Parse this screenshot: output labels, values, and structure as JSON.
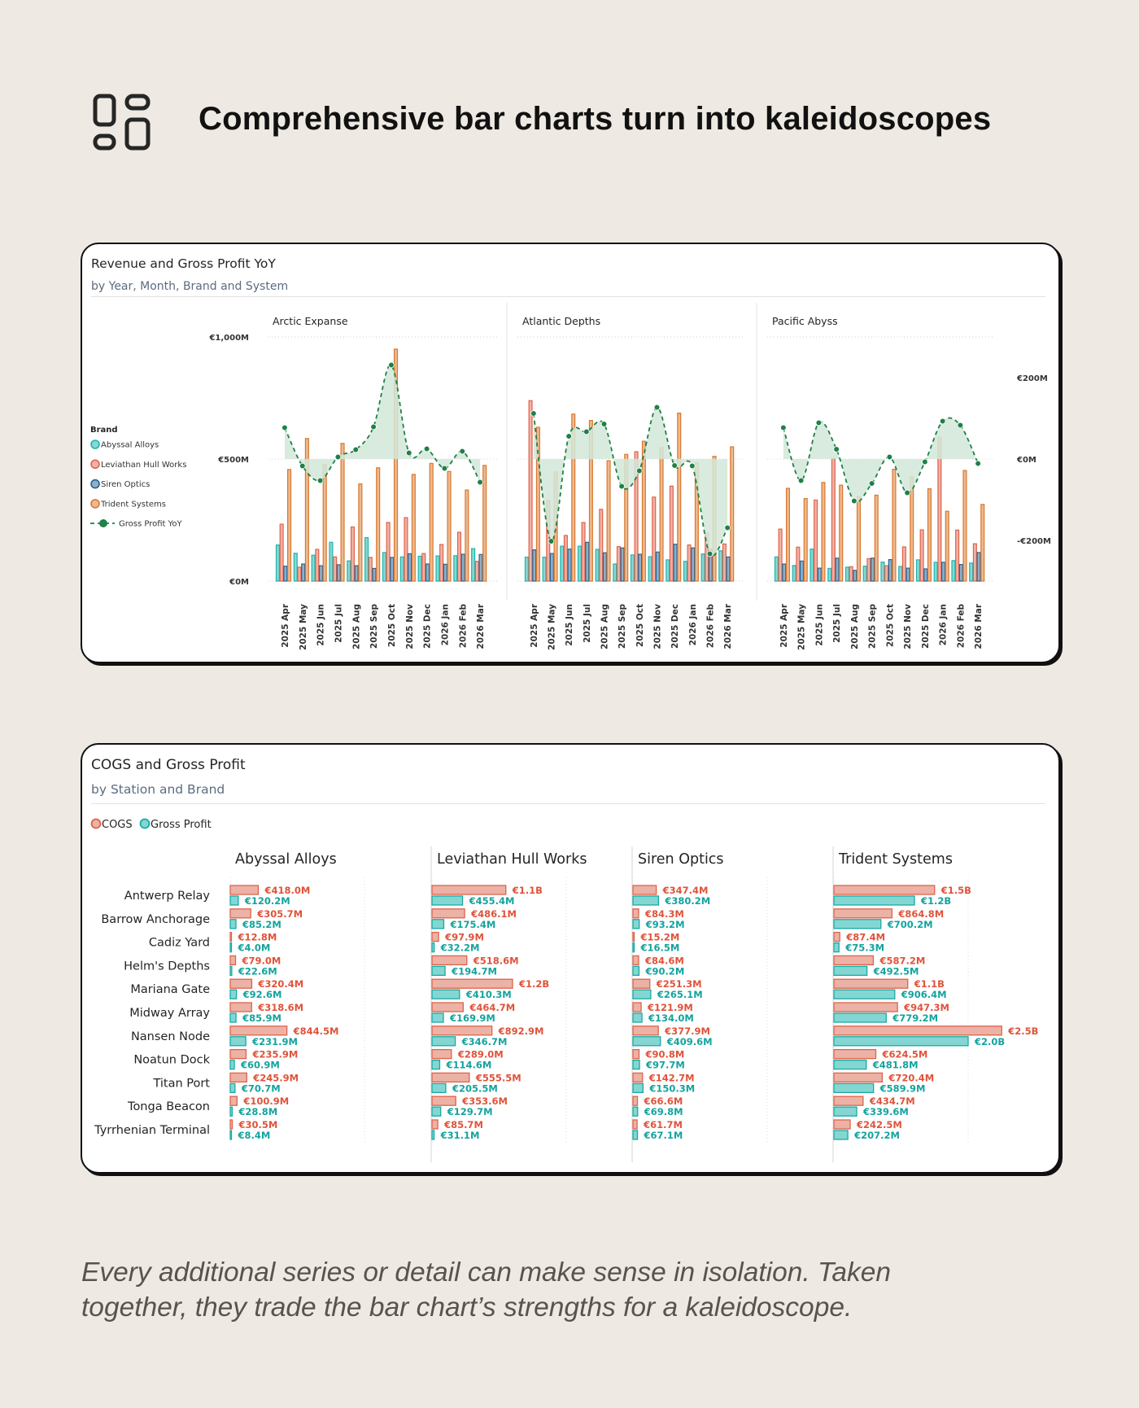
{
  "header": {
    "title": "Comprehensive bar charts turn into kaleidoscopes",
    "icon": "layout-grid-icon"
  },
  "card1": {
    "title": "Revenue and Gross Profit YoY",
    "subtitle": "by Year, Month, Brand and System"
  },
  "card2": {
    "title": "COGS and Gross Profit",
    "subtitle": "by Station and Brand"
  },
  "footer": {
    "line1": "Every additional series or detail can make sense in isolation. Taken",
    "line2": "together, they trade the bar chart’s strengths for a kaleidoscope."
  },
  "chart_data": [
    {
      "type": "bar",
      "secondary_type": "line",
      "title": "Revenue and Gross Profit YoY",
      "subtitle": "by Year, Month, Brand and System",
      "categories": [
        "2025 Apr",
        "2025 May",
        "2025 Jun",
        "2025 Jul",
        "2025 Aug",
        "2025 Sep",
        "2025 Oct",
        "2025 Nov",
        "2025 Dec",
        "2026 Jan",
        "2026 Feb",
        "2026 Mar"
      ],
      "ylim": [
        0,
        1000
      ],
      "yticks": [
        "€0M",
        "€500M",
        "€1,000M"
      ],
      "y2lim": [
        -300,
        300
      ],
      "y2ticks": [
        "-€200M",
        "€0M",
        "€200M"
      ],
      "legend": {
        "title": "Brand",
        "position": "left",
        "line_label": "Gross Profit YoY"
      },
      "series_names": [
        "Abyssal Alloys",
        "Leviathan Hull Works",
        "Siren Optics",
        "Trident Systems"
      ],
      "colors": {
        "Abyssal Alloys": {
          "fill": "#86d8d3",
          "stroke": "#22b3ab"
        },
        "Leviathan Hull Works": {
          "fill": "#efb3a6",
          "stroke": "#e0634b"
        },
        "Siren Optics": {
          "fill": "#8fb0c8",
          "stroke": "#2a6391"
        },
        "Trident Systems": {
          "fill": "#edba90",
          "stroke": "#d9782f"
        },
        "line": "#1f8048",
        "area": "#d2e7d9"
      },
      "grid": true,
      "panels": [
        {
          "name": "Arctic Expanse",
          "series": [
            [
              148,
              114,
              106,
              159,
              83,
              178,
              117,
              99,
              102,
              103,
              104,
              133
            ],
            [
              233,
              57,
              130,
              99,
              222,
              97,
              240,
              260,
              113,
              150,
              200,
              81
            ],
            [
              61,
              70,
              63,
              67,
              63,
              52,
              97,
              112,
              70,
              69,
              110,
              109
            ],
            [
              457,
              584,
              478,
              564,
              398,
              464,
              950,
              437,
              482,
              449,
              373,
              474
            ]
          ],
          "gross_profit_yoy": [
            77,
            -17,
            -53,
            5,
            23,
            79,
            231,
            15,
            25,
            -23,
            19,
            -57
          ]
        },
        {
          "name": "Atlantic Depths",
          "series": [
            [
              98,
              98,
              143,
              143,
              130,
              70,
              107,
              100,
              87,
              81,
              111,
              124
            ],
            [
              739,
              330,
              187,
              240,
              294,
              141,
              530,
              344,
              389,
              148,
              197,
              152
            ],
            [
              128,
              113,
              131,
              159,
              116,
              136,
              110,
              119,
              151,
              136,
              130,
              99
            ],
            [
              630,
              447,
              684,
              658,
              493,
              519,
              573,
              547,
              688,
              484,
              511,
              550
            ]
          ],
          "gross_profit_yoy": [
            112,
            -202,
            56,
            67,
            86,
            -67,
            -29,
            127,
            -16,
            -17,
            -233,
            -169
          ]
        },
        {
          "name": "Pacific Abyss",
          "series": [
            [
              99,
              64,
              131,
              52,
              57,
              61,
              78,
              60,
              87,
              77,
              84,
              74
            ],
            [
              213,
              139,
              332,
              503,
              59,
              92,
              63,
              140,
              210,
              589,
              209,
              153
            ],
            [
              70,
              82,
              53,
              94,
              44,
              94,
              88,
              53,
              50,
              77,
              68,
              117
            ],
            [
              380,
              338,
              404,
              393,
              346,
              352,
              458,
              427,
              378,
              286,
              453,
              314
            ]
          ],
          "gross_profit_yoy": [
            77,
            -53,
            89,
            24,
            -103,
            -60,
            5,
            -83,
            -7,
            93,
            83,
            -11
          ]
        }
      ]
    },
    {
      "type": "bar",
      "orientation": "horizontal",
      "title": "COGS and Gross Profit",
      "subtitle": "by Station and Brand",
      "legend": {
        "position": "top-left",
        "items": [
          "COGS",
          "Gross Profit"
        ]
      },
      "colors": {
        "cogs_fill": "#ecb2a5",
        "cogs_stroke": "#e0634b",
        "cogs_label": "#e0533a",
        "gp_fill": "#84d6d2",
        "gp_stroke": "#19aaa3",
        "gp_label": "#14a39e"
      },
      "categories": [
        "Antwerp Relay",
        "Barrow Anchorage",
        "Cadiz Yard",
        "Helm's Depths",
        "Mariana Gate",
        "Midway Array",
        "Nansen Node",
        "Noatun Dock",
        "Titan Port",
        "Tonga Beacon",
        "Tyrrhenian Terminal"
      ],
      "unit": "€M",
      "panels": [
        {
          "name": "Abyssal Alloys",
          "cogs": [
            418.0,
            305.7,
            12.8,
            79.0,
            320.4,
            318.6,
            844.5,
            235.9,
            245.9,
            100.9,
            30.5
          ],
          "gross_profit": [
            120.2,
            85.2,
            4.0,
            22.6,
            92.6,
            85.9,
            231.9,
            60.9,
            70.7,
            28.8,
            8.4
          ],
          "cogs_labels": [
            "€418.0M",
            "€305.7M",
            "€12.8M",
            "€79.0M",
            "€320.4M",
            "€318.6M",
            "€844.5M",
            "€235.9M",
            "€245.9M",
            "€100.9M",
            "€30.5M"
          ],
          "gp_labels": [
            "€120.2M",
            "€85.2M",
            "€4.0M",
            "€22.6M",
            "€92.6M",
            "€85.9M",
            "€231.9M",
            "€60.9M",
            "€70.7M",
            "€28.8M",
            "€8.4M"
          ]
        },
        {
          "name": "Leviathan Hull Works",
          "cogs": [
            1100,
            486.1,
            97.9,
            518.6,
            1200,
            464.7,
            892.9,
            289.0,
            555.5,
            353.6,
            85.7
          ],
          "gross_profit": [
            455.4,
            175.4,
            32.2,
            194.7,
            410.3,
            169.9,
            346.7,
            114.6,
            205.5,
            129.7,
            31.1
          ],
          "cogs_labels": [
            "€1.1B",
            "€486.1M",
            "€97.9M",
            "€518.6M",
            "€1.2B",
            "€464.7M",
            "€892.9M",
            "€289.0M",
            "€555.5M",
            "€353.6M",
            "€85.7M"
          ],
          "gp_labels": [
            "€455.4M",
            "€175.4M",
            "€32.2M",
            "€194.7M",
            "€410.3M",
            "€169.9M",
            "€346.7M",
            "€114.6M",
            "€205.5M",
            "€129.7M",
            "€31.1M"
          ]
        },
        {
          "name": "Siren Optics",
          "cogs": [
            347.4,
            84.3,
            15.2,
            84.6,
            251.3,
            121.9,
            377.9,
            90.8,
            142.7,
            66.6,
            61.7
          ],
          "gross_profit": [
            380.2,
            93.2,
            16.5,
            90.2,
            265.1,
            134.0,
            409.6,
            97.7,
            150.3,
            69.8,
            67.1
          ],
          "cogs_labels": [
            "€347.4M",
            "€84.3M",
            "€15.2M",
            "€84.6M",
            "€251.3M",
            "€121.9M",
            "€377.9M",
            "€90.8M",
            "€142.7M",
            "€66.6M",
            "€61.7M"
          ],
          "gp_labels": [
            "€380.2M",
            "€93.2M",
            "€16.5M",
            "€90.2M",
            "€265.1M",
            "€134.0M",
            "€409.6M",
            "€97.7M",
            "€150.3M",
            "€69.8M",
            "€67.1M"
          ]
        },
        {
          "name": "Trident Systems",
          "cogs": [
            1500,
            864.8,
            87.4,
            587.2,
            1100,
            947.3,
            2500,
            624.5,
            720.4,
            434.7,
            242.5
          ],
          "gross_profit": [
            1200,
            700.2,
            75.3,
            492.5,
            906.4,
            779.2,
            2000,
            481.8,
            589.9,
            339.6,
            207.2
          ],
          "cogs_labels": [
            "€1.5B",
            "€864.8M",
            "€87.4M",
            "€587.2M",
            "€1.1B",
            "€947.3M",
            "€2.5B",
            "€624.5M",
            "€720.4M",
            "€434.7M",
            "€242.5M"
          ],
          "gp_labels": [
            "€1.2B",
            "€700.2M",
            "€75.3M",
            "€492.5M",
            "€906.4M",
            "€779.2M",
            "€2.0B",
            "€481.8M",
            "€589.9M",
            "€339.6M",
            "€207.2M"
          ]
        }
      ]
    }
  ]
}
